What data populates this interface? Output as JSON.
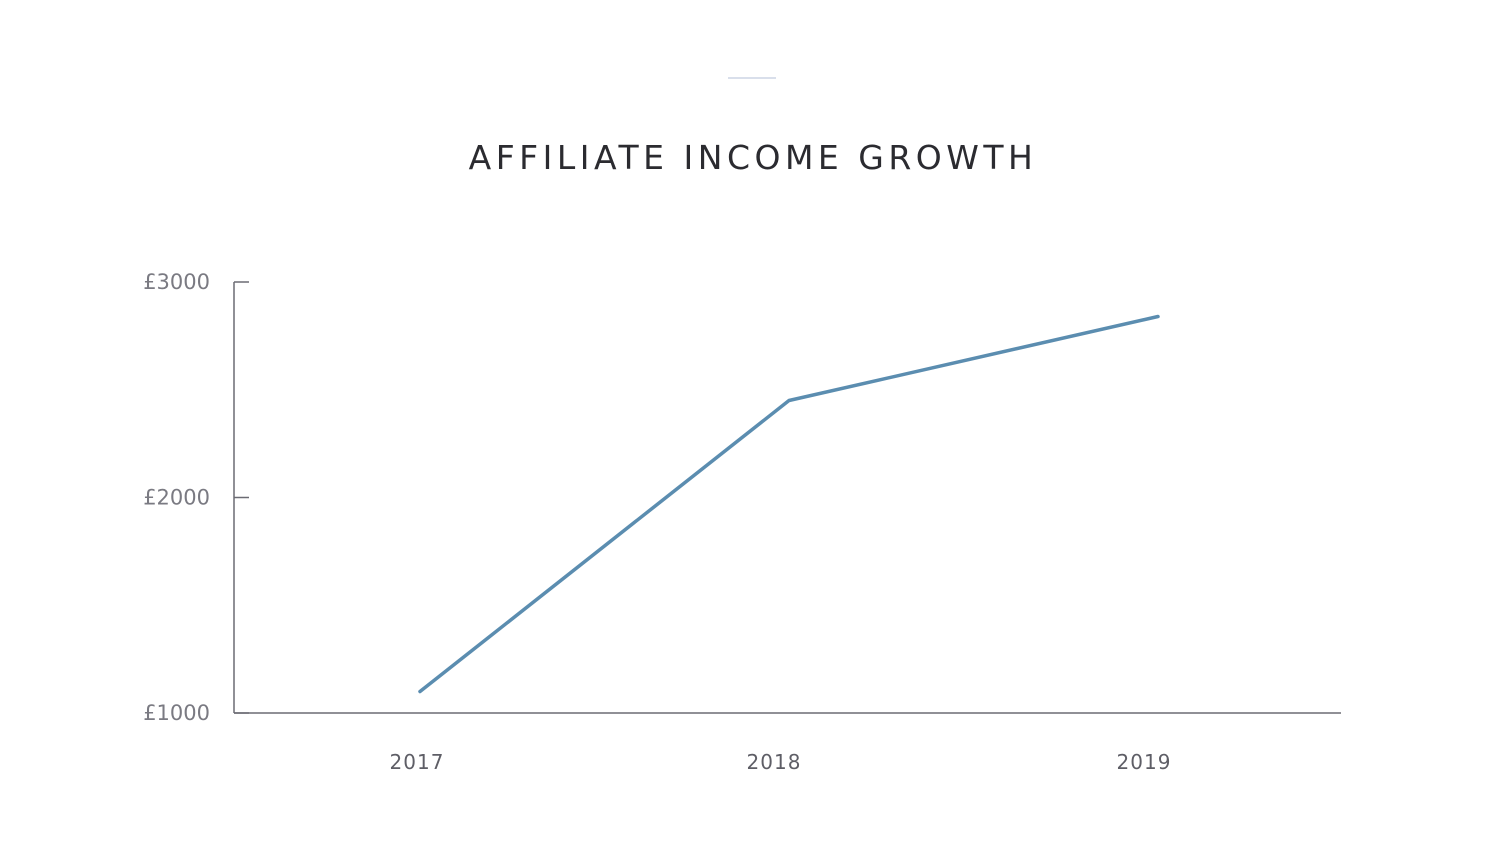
{
  "chart_data": {
    "type": "line",
    "title": "AFFILIATE INCOME GROWTH",
    "categories": [
      "2017",
      "2018",
      "2019"
    ],
    "series": [
      {
        "values": [
          1100,
          2450,
          2840
        ]
      }
    ],
    "ylim": [
      1000,
      3000
    ],
    "yticks": [
      1000,
      2000,
      3000
    ],
    "ytick_labels": [
      "£1000",
      "£2000",
      "£3000"
    ],
    "xlabel": "",
    "ylabel": "",
    "grid": false,
    "line_color": "#5b8db0",
    "axis_color": "#6b6b73"
  }
}
